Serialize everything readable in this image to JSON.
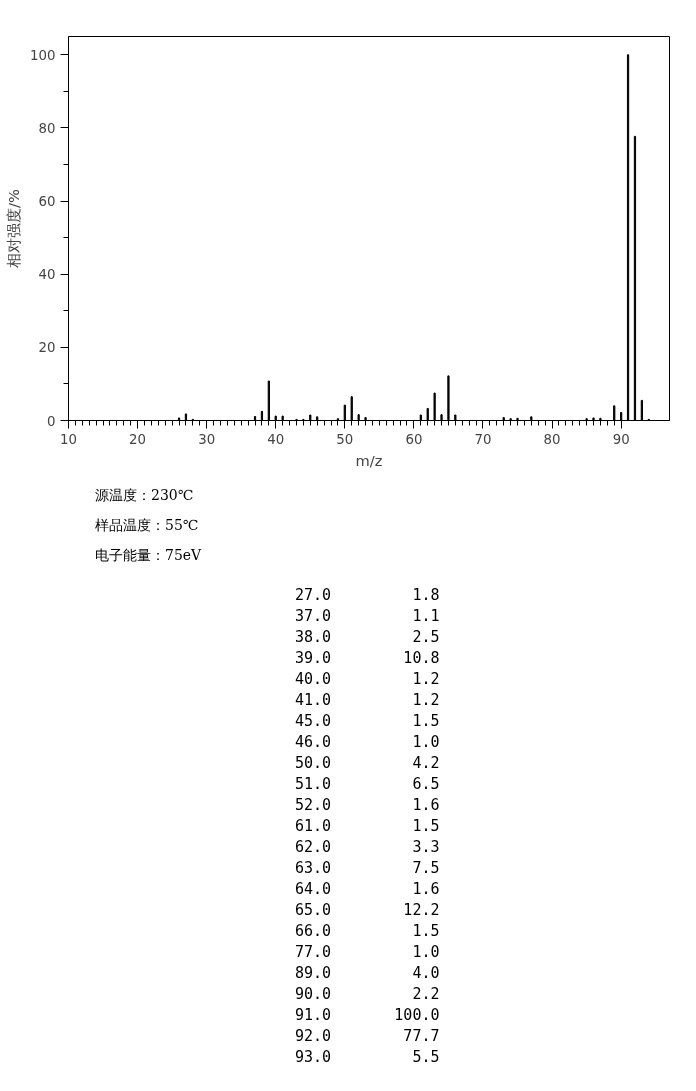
{
  "chart_data": [
    {
      "type": "bar",
      "xlabel": "m/z",
      "ylabel": "相对强度/%",
      "x": [
        26,
        27,
        28,
        37,
        38,
        39,
        40,
        41,
        43,
        44,
        45,
        46,
        49,
        50,
        51,
        52,
        53,
        61,
        62,
        63,
        64,
        65,
        66,
        73,
        74,
        75,
        77,
        85,
        86,
        87,
        89,
        90,
        91,
        92,
        93,
        94
      ],
      "values": [
        0.7,
        1.8,
        0.3,
        1.1,
        2.5,
        10.8,
        1.2,
        1.2,
        0.3,
        0.3,
        1.5,
        1.0,
        0.5,
        4.2,
        6.5,
        1.6,
        0.8,
        1.5,
        3.3,
        7.5,
        1.6,
        12.2,
        1.5,
        0.8,
        0.5,
        0.6,
        1.0,
        0.5,
        0.7,
        0.6,
        4.0,
        2.2,
        100.0,
        77.7,
        5.5,
        0.3
      ],
      "color": "#000000",
      "xlim": [
        10,
        97
      ],
      "xticks": [
        10,
        20,
        30,
        40,
        50,
        60,
        70,
        80,
        90
      ],
      "ylim": [
        0,
        105
      ],
      "yticks": [
        0,
        20,
        40,
        60,
        80,
        100
      ],
      "annotations": [
        "源温度：230℃",
        "样品温度：55℃",
        "电子能量：75eV"
      ]
    },
    {
      "type": "other",
      "annotations": [
        "27.0         1.8",
        "37.0         1.1",
        "38.0         2.5",
        "39.0        10.8",
        "40.0         1.2",
        "41.0         1.2",
        "45.0         1.5",
        "46.0         1.0",
        "50.0         4.2",
        "51.0         6.5",
        "52.0         1.6",
        "61.0         1.5",
        "62.0         3.3",
        "63.0         7.5",
        "64.0         1.6",
        "65.0        12.2",
        "66.0         1.5",
        "77.0         1.0",
        "89.0         4.0",
        "90.0         2.2",
        "91.0       100.0",
        "92.0        77.7",
        "93.0         5.5"
      ]
    }
  ]
}
